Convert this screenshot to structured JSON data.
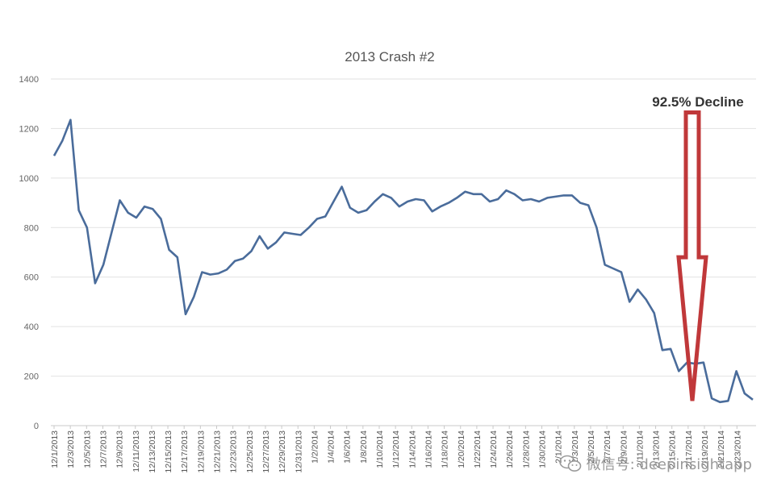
{
  "chart_data": {
    "type": "line",
    "title": "2013 Crash #2",
    "xlabel": "",
    "ylabel": "",
    "ylim": [
      0,
      1400
    ],
    "yticks": [
      0,
      200,
      400,
      600,
      800,
      1000,
      1200,
      1400
    ],
    "grid": true,
    "legend": "none",
    "x_tick_labels": [
      "12/1/2013",
      "12/3/2013",
      "12/5/2013",
      "12/7/2013",
      "12/9/2013",
      "12/11/2013",
      "12/13/2013",
      "12/15/2013",
      "12/17/2013",
      "12/19/2013",
      "12/21/2013",
      "12/23/2013",
      "12/25/2013",
      "12/27/2013",
      "12/29/2013",
      "12/31/2013",
      "1/2/2014",
      "1/4/2014",
      "1/6/2014",
      "1/8/2014",
      "1/10/2014",
      "1/12/2014",
      "1/14/2014",
      "1/16/2014",
      "1/18/2014",
      "1/20/2014",
      "1/22/2014",
      "1/24/2014",
      "1/26/2014",
      "1/28/2014",
      "1/30/2014",
      "2/1/2014",
      "2/3/2014",
      "2/5/2014",
      "2/7/2014",
      "2/9/2014",
      "2/11/2014",
      "2/13/2014",
      "2/15/2014",
      "2/17/2014",
      "2/19/2014",
      "2/21/2014",
      "2/23/2014"
    ],
    "series": [
      {
        "color": "#4a6c9b",
        "values": [
          1090,
          1150,
          1235,
          870,
          800,
          575,
          650,
          780,
          910,
          860,
          840,
          885,
          875,
          835,
          710,
          680,
          450,
          520,
          620,
          610,
          615,
          630,
          665,
          675,
          705,
          765,
          715,
          740,
          780,
          775,
          770,
          800,
          835,
          845,
          905,
          965,
          880,
          860,
          870,
          905,
          935,
          920,
          885,
          905,
          915,
          910,
          865,
          885,
          900,
          920,
          945,
          935,
          935,
          905,
          915,
          950,
          935,
          910,
          915,
          905,
          920,
          925,
          930,
          930,
          900,
          890,
          800,
          650,
          635,
          620,
          500,
          550,
          510,
          455,
          305,
          310,
          220,
          255,
          250,
          255,
          110,
          95,
          100,
          220,
          130,
          105
        ]
      }
    ],
    "annotation": {
      "text": "92.5% Decline",
      "color": "#c0383a",
      "from_value": 1265,
      "to_value": 100
    }
  },
  "watermark": {
    "text": "微信号: deepinsightapp"
  }
}
